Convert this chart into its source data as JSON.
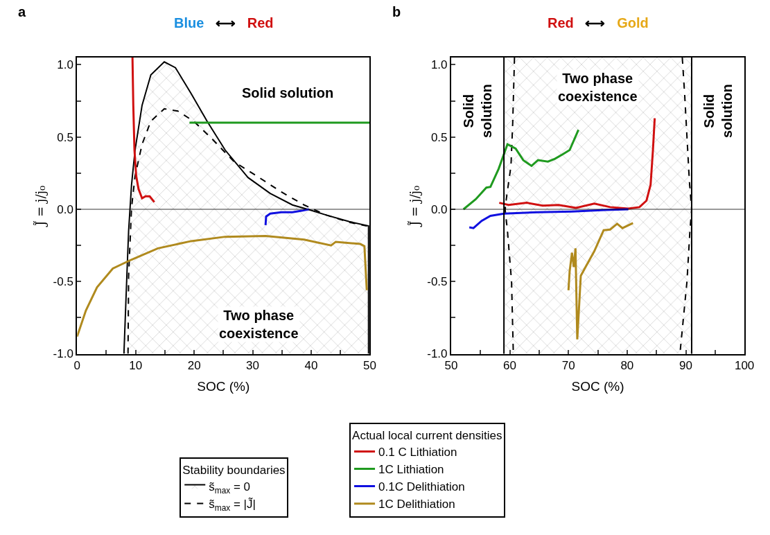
{
  "chart_data": [
    {
      "type": "line",
      "title": "a",
      "subtitle": "Blue ⟷ Red",
      "xlabel": "SOC (%)",
      "ylabel": "J̃ = j/j₀",
      "legend_title": "Stability boundaries",
      "legend": "bottom",
      "grid": false,
      "xlim": [
        0,
        50
      ],
      "xticks": [
        0,
        {
          "value": 5,
          "label": null
        },
        10,
        {
          "value": 15,
          "label": null
        },
        20,
        {
          "value": 25,
          "label": null
        },
        30,
        {
          "value": 35,
          "label": null
        },
        40,
        {
          "value": 45,
          "label": null
        },
        50
      ],
      "ylim": [
        -1,
        1.05
      ],
      "yticks": [
        {
          "value": -1,
          "label": "-1.0"
        },
        {
          "value": -0.75,
          "label": null
        },
        {
          "value": -0.5,
          "label": "-0.5"
        },
        {
          "value": -0.25,
          "label": null
        },
        {
          "value": 0,
          "label": "0.0"
        },
        {
          "value": 0.25,
          "label": null
        },
        {
          "value": 0.5,
          "label": "0.5"
        },
        {
          "value": 0.75,
          "label": null
        },
        {
          "value": 1,
          "label": "1.0"
        }
      ],
      "ref_lines": [
        {
          "axis": "y",
          "value": 0,
          "color": "#000000"
        }
      ],
      "annotations": [
        "Solid solution",
        "Two phase\ncoexistence"
      ],
      "series": [
        {
          "name": "s̃$_{max}$ = 0",
          "type": "area",
          "color": "#000000",
          "line_style": "solid",
          "x": [
            8,
            8.5,
            8.8,
            9.3,
            9.9,
            11.1,
            12.6,
            14.9,
            16.8,
            19.5,
            22.2,
            25.3,
            29.2,
            33,
            36.8,
            39.9,
            42.6,
            46.5,
            49.8,
            49.8
          ],
          "values": [
            -1,
            -0.46,
            -0.15,
            0.17,
            0.41,
            0.72,
            0.93,
            1.02,
            0.98,
            0.8,
            0.61,
            0.41,
            0.22,
            0.11,
            0.03,
            -0.006,
            -0.04,
            -0.085,
            -0.115,
            -1
          ]
        },
        {
          "name": "s̃$_{max}$ = |J̃|",
          "color": "#000000",
          "line_style": "dashed",
          "x": [
            8.7,
            8.8,
            9.3,
            9.9,
            11.1,
            12.6,
            14.9,
            17.2,
            19.9,
            23,
            26.8,
            31.1,
            34.9,
            38.8,
            42.6,
            46.5,
            49.5
          ],
          "values": [
            -1,
            -0.46,
            0.01,
            0.23,
            0.45,
            0.61,
            0.695,
            0.68,
            0.61,
            0.49,
            0.33,
            0.22,
            0.12,
            0.03,
            -0.04,
            -0.09,
            -0.115
          ]
        },
        {
          "color": "#d01010",
          "x": [
            9.46,
            9.6,
            9.8,
            10.1,
            10.5,
            11.1,
            11.7,
            12.4,
            13.2
          ],
          "values": [
            1.05,
            0.72,
            0.41,
            0.23,
            0.14,
            0.076,
            0.09,
            0.09,
            0.05
          ]
        },
        {
          "color": "#1f9a1f",
          "x": [
            19.2,
            50
          ],
          "values": [
            0.6,
            0.6
          ]
        },
        {
          "color": "#1010e0",
          "x": [
            32.2,
            32.3,
            33,
            34.9,
            36.8,
            38.4,
            39.6
          ],
          "values": [
            -0.11,
            -0.05,
            -0.03,
            -0.02,
            -0.02,
            -0.01,
            0
          ]
        },
        {
          "color": "#b08a1e",
          "x": [
            0,
            1.5,
            3.4,
            6.1,
            9.2,
            13.8,
            19.5,
            25.3,
            32.2,
            38.8,
            43.4,
            44.2,
            48.4,
            49.1,
            49.5
          ],
          "values": [
            -0.88,
            -0.7,
            -0.54,
            -0.41,
            -0.35,
            -0.27,
            -0.22,
            -0.19,
            -0.185,
            -0.21,
            -0.25,
            -0.225,
            -0.24,
            -0.255,
            -0.56
          ]
        }
      ]
    },
    {
      "type": "line",
      "title": "b",
      "subtitle": "Red ⟷ Gold",
      "xlabel": "SOC (%)",
      "ylabel": "J̃ = j/j₀",
      "legend_title": "Actual local current densities",
      "legend": "bottom",
      "grid": false,
      "xlim": [
        50,
        100
      ],
      "xticks": [
        50,
        {
          "value": 55,
          "label": null
        },
        60,
        {
          "value": 65,
          "label": null
        },
        70,
        {
          "value": 75,
          "label": null
        },
        80,
        {
          "value": 85,
          "label": null
        },
        90,
        {
          "value": 95,
          "label": null
        },
        100
      ],
      "ylim": [
        -1,
        1.05
      ],
      "yticks": [
        {
          "value": -1,
          "label": "-1.0"
        },
        {
          "value": -0.75,
          "label": null
        },
        {
          "value": -0.5,
          "label": "-0.5"
        },
        {
          "value": -0.25,
          "label": null
        },
        {
          "value": 0,
          "label": "0.0"
        },
        {
          "value": 0.25,
          "label": null
        },
        {
          "value": 0.5,
          "label": "0.5"
        },
        {
          "value": 0.75,
          "label": null
        },
        {
          "value": 1,
          "label": "1.0"
        }
      ],
      "ref_lines": [
        {
          "axis": "y",
          "value": 0,
          "color": "#000000"
        },
        {
          "axis": "x",
          "value": 59,
          "color": "#000000"
        },
        {
          "axis": "x",
          "value": 91,
          "color": "#000000"
        }
      ],
      "bands": [
        {
          "axis": "x",
          "from": 59,
          "to": 91
        }
      ],
      "annotations": [
        "Solid\nsolution",
        "Two phase\ncoexistence",
        "Solid\nsolution"
      ],
      "series": [
        {
          "color": "#000000",
          "line_style": "dashed",
          "x": [
            60.8,
            60.5,
            60.2,
            59.5,
            59.2,
            59.6,
            60.3,
            60.6
          ],
          "values": [
            1.05,
            0.6,
            0.3,
            0.1,
            0,
            -0.15,
            -0.5,
            -1
          ]
        },
        {
          "color": "#000000",
          "line_style": "dashed",
          "x": [
            89.4,
            89.8,
            90.2,
            90.6,
            91,
            90.7,
            90.2,
            89
          ],
          "values": [
            1.05,
            0.8,
            0.5,
            0.2,
            0,
            -0.15,
            -0.5,
            -1
          ]
        },
        {
          "name": "0.1 C Lithiation",
          "color": "#d01010",
          "x": [
            58.2,
            59.8,
            62.9,
            65.6,
            68.3,
            71.3,
            74.4,
            77.1,
            80.2,
            82.1,
            83.3,
            84,
            84.4,
            84.7
          ],
          "values": [
            0.045,
            0.03,
            0.045,
            0.025,
            0.03,
            0.01,
            0.04,
            0.015,
            0.005,
            0.015,
            0.06,
            0.17,
            0.41,
            0.63
          ]
        },
        {
          "name": "1C Lithiation",
          "color": "#1f9a1f",
          "x": [
            52.1,
            54.2,
            56,
            56.7,
            58.1,
            59.6,
            61,
            62.3,
            63.7,
            64.8,
            66.5,
            67.7,
            69,
            70.2,
            71.7
          ],
          "values": [
            0,
            0.07,
            0.15,
            0.155,
            0.28,
            0.45,
            0.42,
            0.34,
            0.3,
            0.34,
            0.33,
            0.35,
            0.38,
            0.41,
            0.55
          ]
        },
        {
          "name": "0.1C Delithiation",
          "color": "#1010e0",
          "x": [
            53.1,
            53.8,
            55.2,
            56.7,
            59,
            64.8,
            70.6,
            76.3,
            80.2
          ],
          "values": [
            -0.125,
            -0.13,
            -0.08,
            -0.045,
            -0.03,
            -0.02,
            -0.015,
            -0.005,
            0
          ]
        },
        {
          "name": "1C Delithiation",
          "color": "#b08a1e",
          "x": [
            70,
            70.2,
            70.6,
            70.9,
            71.2,
            71.5,
            72.1,
            72.9,
            74.4,
            76,
            77.1,
            78.3,
            79.2,
            81
          ],
          "values": [
            -0.56,
            -0.43,
            -0.3,
            -0.4,
            -0.27,
            -0.9,
            -0.46,
            -0.4,
            -0.29,
            -0.145,
            -0.14,
            -0.1,
            -0.13,
            -0.095
          ]
        }
      ]
    }
  ]
}
